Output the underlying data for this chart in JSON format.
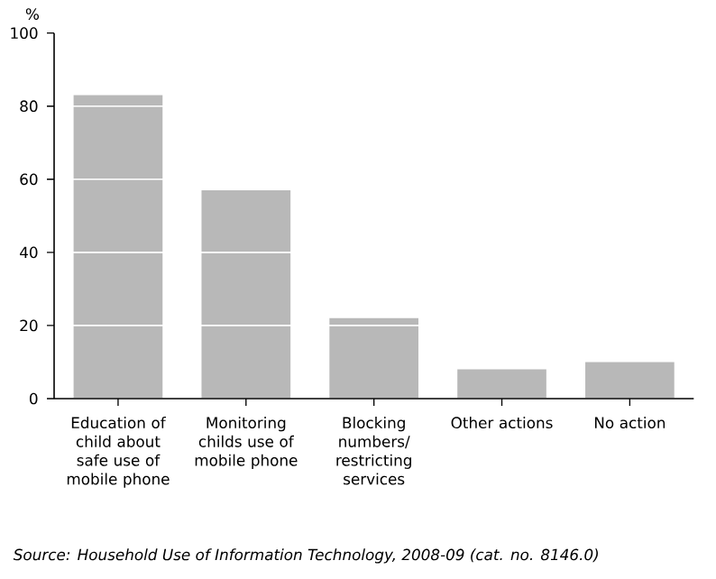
{
  "chart_data": {
    "type": "bar",
    "categories": [
      "Education of child about safe use of mobile phone",
      "Monitoring childs use of mobile phone",
      "Blocking numbers/ restricting services",
      "Other actions",
      "No action"
    ],
    "values": [
      83,
      57,
      22,
      8,
      10
    ],
    "color": "#b8b8b8",
    "ylabel": "%",
    "ylim": [
      0,
      100
    ],
    "yticks": [
      0,
      20,
      40,
      60,
      80,
      100
    ],
    "grid": "y",
    "annotations": [
      "Source: Household Use of Information Technology, 2008-09 (cat. no. 8146.0)"
    ]
  }
}
